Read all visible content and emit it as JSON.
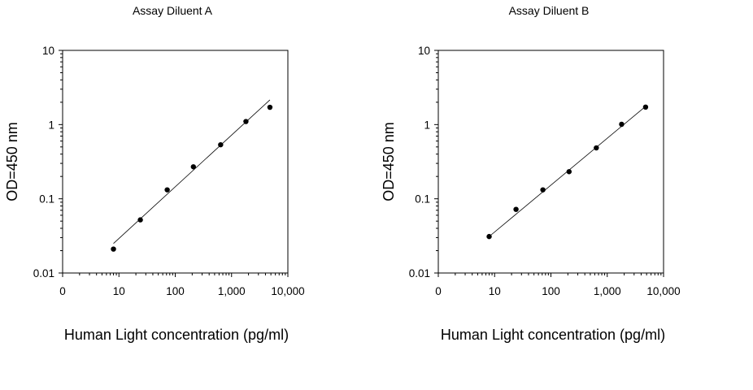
{
  "chart_data": [
    {
      "type": "scatter",
      "title": "Assay Diluent A",
      "xlabel": "Human Light concentration (pg/ml)",
      "ylabel": "OD=450 nm",
      "x_scale": "log",
      "y_scale": "log",
      "xlim": [
        1,
        10000
      ],
      "ylim": [
        0.01,
        10
      ],
      "x_ticks": [
        "0",
        "10",
        "100",
        "1,000",
        "10,000"
      ],
      "y_ticks": [
        "10",
        "1",
        "0.1",
        "0.01"
      ],
      "grid": false,
      "legend": "none",
      "series": [
        {
          "x": [
            8,
            24,
            72,
            210,
            640,
            1800,
            4800
          ],
          "y": [
            0.021,
            0.052,
            0.132,
            0.27,
            0.535,
            1.1,
            1.71
          ]
        }
      ],
      "fit_line": {
        "x": [
          8,
          4800
        ],
        "y": [
          0.025,
          2.15
        ]
      }
    },
    {
      "type": "scatter",
      "title": "Assay Diluent B",
      "xlabel": "Human Light concentration (pg/ml)",
      "ylabel": "OD=450 nm",
      "x_scale": "log",
      "y_scale": "log",
      "xlim": [
        1,
        10000
      ],
      "ylim": [
        0.01,
        10
      ],
      "x_ticks": [
        "0",
        "10",
        "100",
        "1,000",
        "10,000"
      ],
      "y_ticks": [
        "10",
        "1",
        "0.1",
        "0.01"
      ],
      "grid": false,
      "legend": "none",
      "series": [
        {
          "x": [
            8,
            24,
            72,
            210,
            640,
            1800,
            4800
          ],
          "y": [
            0.031,
            0.072,
            0.132,
            0.232,
            0.485,
            1.01,
            1.72
          ]
        }
      ],
      "fit_line": {
        "x": [
          8,
          4800
        ],
        "y": [
          0.031,
          1.76
        ]
      }
    }
  ]
}
